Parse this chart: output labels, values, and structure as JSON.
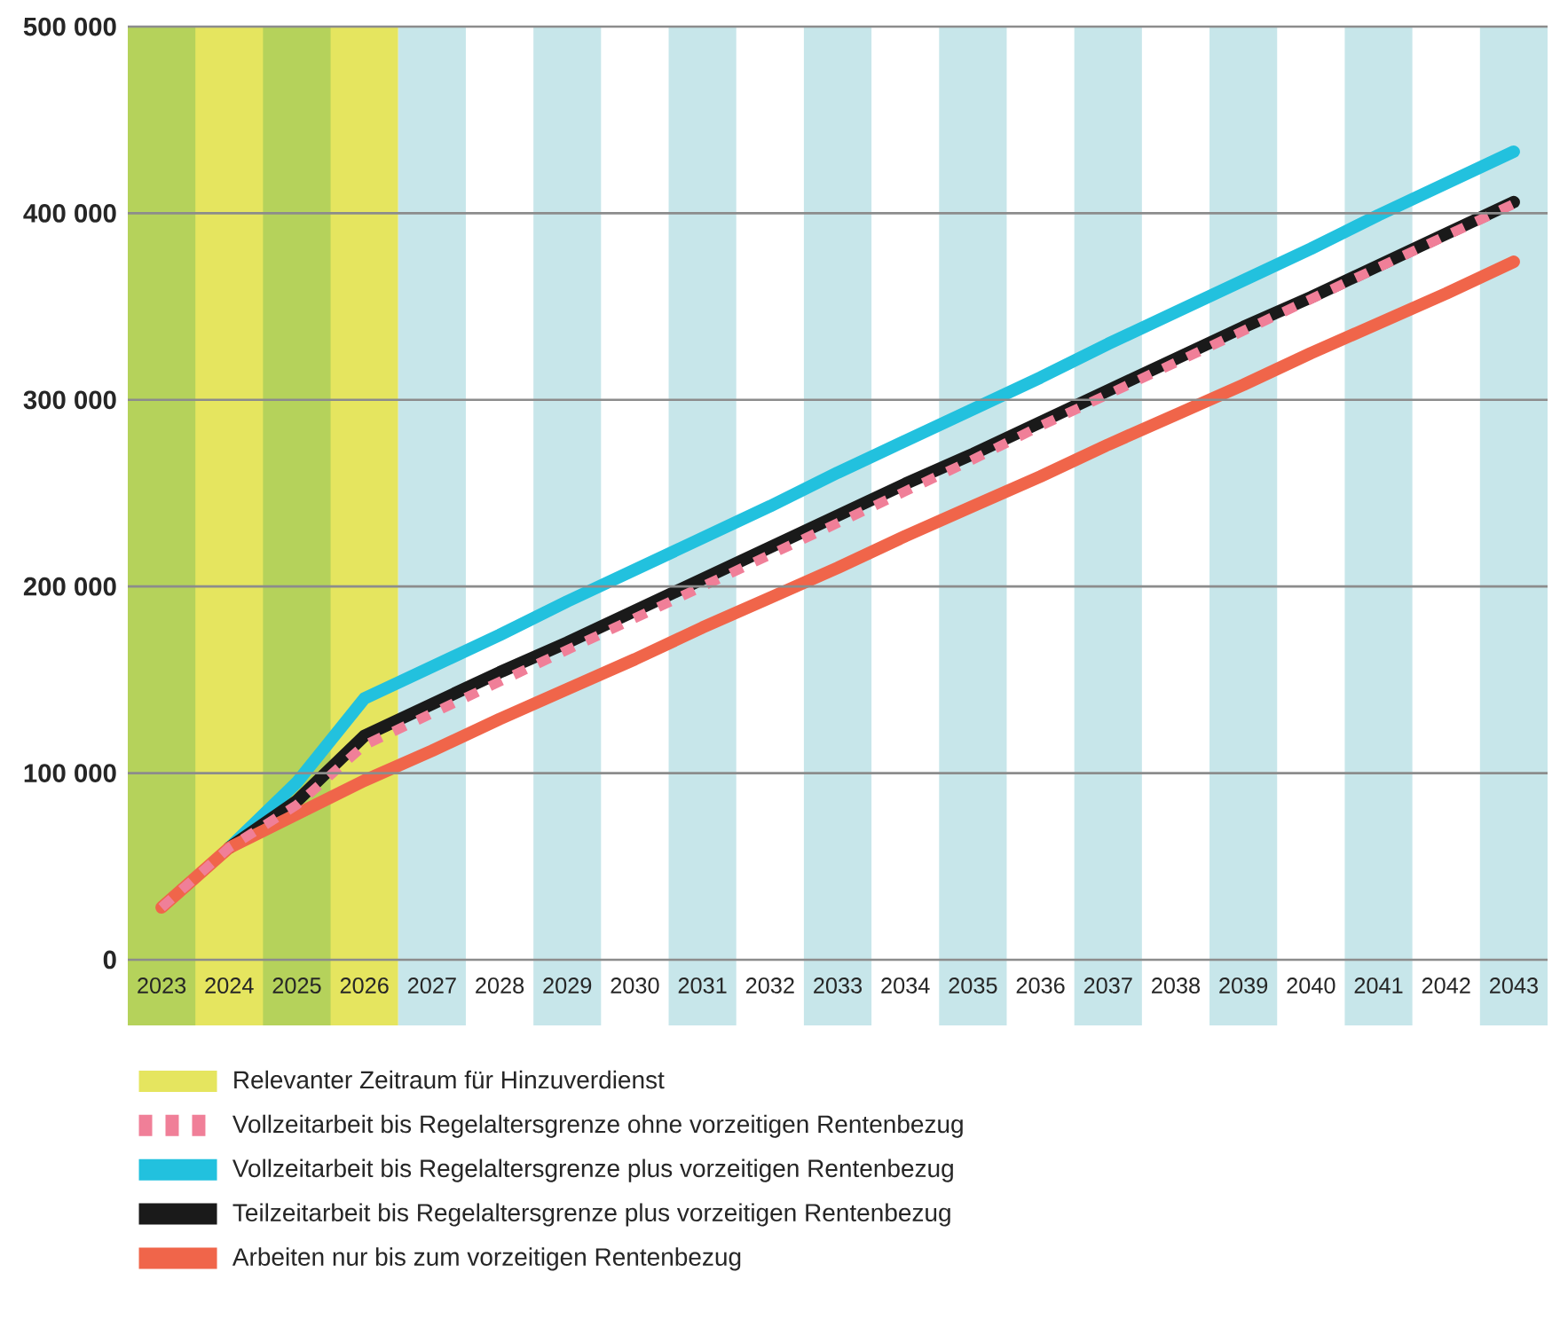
{
  "chart_data": {
    "type": "line",
    "x": [
      2023,
      2024,
      2025,
      2026,
      2027,
      2028,
      2029,
      2030,
      2031,
      2032,
      2033,
      2034,
      2035,
      2036,
      2037,
      2038,
      2039,
      2040,
      2041,
      2042,
      2043
    ],
    "xlim": [
      2022.5,
      2043.5
    ],
    "xticks": [
      2023,
      2024,
      2025,
      2026,
      2027,
      2028,
      2029,
      2030,
      2031,
      2032,
      2033,
      2034,
      2035,
      2036,
      2037,
      2038,
      2039,
      2040,
      2041,
      2042,
      2043
    ],
    "ylim": [
      0,
      500000
    ],
    "yticks": [
      {
        "value": 0,
        "label": "0"
      },
      {
        "value": 100000,
        "label": "100 000"
      },
      {
        "value": 200000,
        "label": "200 000"
      },
      {
        "value": 300000,
        "label": "300 000"
      },
      {
        "value": 400000,
        "label": "400 000"
      },
      {
        "value": 500000,
        "label": "500 000"
      }
    ],
    "grid": "y",
    "legend": "bottom",
    "bands": [
      {
        "axis": "x",
        "from": 2022.5,
        "to": 2026.5,
        "label": "Relevanter Zeitraum für Hinzuverdienst",
        "color": "#e5e55f"
      },
      {
        "axis": "x",
        "from": 2022.5,
        "to": 2023.5,
        "color": "#b5d25b"
      },
      {
        "axis": "x",
        "from": 2024.5,
        "to": 2025.5,
        "color": "#b5d25b"
      },
      {
        "axis": "x",
        "from": 2026.5,
        "to": 2027.5,
        "color": "#c7e6ea"
      },
      {
        "axis": "x",
        "from": 2028.5,
        "to": 2029.5,
        "color": "#c7e6ea"
      },
      {
        "axis": "x",
        "from": 2030.5,
        "to": 2031.5,
        "color": "#c7e6ea"
      },
      {
        "axis": "x",
        "from": 2032.5,
        "to": 2033.5,
        "color": "#c7e6ea"
      },
      {
        "axis": "x",
        "from": 2034.5,
        "to": 2035.5,
        "color": "#c7e6ea"
      },
      {
        "axis": "x",
        "from": 2036.5,
        "to": 2037.5,
        "color": "#c7e6ea"
      },
      {
        "axis": "x",
        "from": 2038.5,
        "to": 2039.5,
        "color": "#c7e6ea"
      },
      {
        "axis": "x",
        "from": 2040.5,
        "to": 2041.5,
        "color": "#c7e6ea"
      },
      {
        "axis": "x",
        "from": 2042.5,
        "to": 2043.5,
        "color": "#c7e6ea"
      }
    ],
    "series": [
      {
        "name": "Vollzeitarbeit bis Regelaltersgrenze ohne vorzeitigen Rentenbezug",
        "color": "#f07f98",
        "line_style": "dashed",
        "values": [
          28000,
          60000,
          83000,
          115000,
          132000,
          149000,
          166000,
          183000,
          200000,
          217000,
          234000,
          251000,
          268000,
          286000,
          303000,
          320000,
          337000,
          354000,
          371000,
          388000,
          405000
        ]
      },
      {
        "name": "Vollzeitarbeit bis Regelaltersgrenze plus vorzeitigen Rentenbezug",
        "color": "#22c1de",
        "line_style": "solid",
        "values": [
          null,
          60000,
          95000,
          140000,
          157000,
          174000,
          192000,
          209000,
          226000,
          243000,
          261000,
          278000,
          295000,
          312000,
          330000,
          347000,
          364000,
          381000,
          399000,
          416000,
          433000
        ]
      },
      {
        "name": "Teilzeitarbeit bis Regelaltersgrenze plus vorzeitigen Rentenbezug",
        "color": "#1a1a1a",
        "line_style": "solid",
        "values": [
          null,
          60000,
          85000,
          120000,
          137000,
          154000,
          170000,
          187000,
          204000,
          221000,
          238000,
          255000,
          271000,
          288000,
          305000,
          322000,
          339000,
          355000,
          372000,
          389000,
          406000
        ]
      },
      {
        "name": "Arbeiten nur bis zum vorzeitigen Rentenbezug",
        "color": "#f0654a",
        "line_style": "solid",
        "values": [
          28000,
          60000,
          78000,
          96000,
          112000,
          129000,
          145000,
          161000,
          178000,
          194000,
          210000,
          227000,
          243000,
          259000,
          276000,
          292000,
          308000,
          325000,
          341000,
          357000,
          374000
        ]
      }
    ]
  }
}
